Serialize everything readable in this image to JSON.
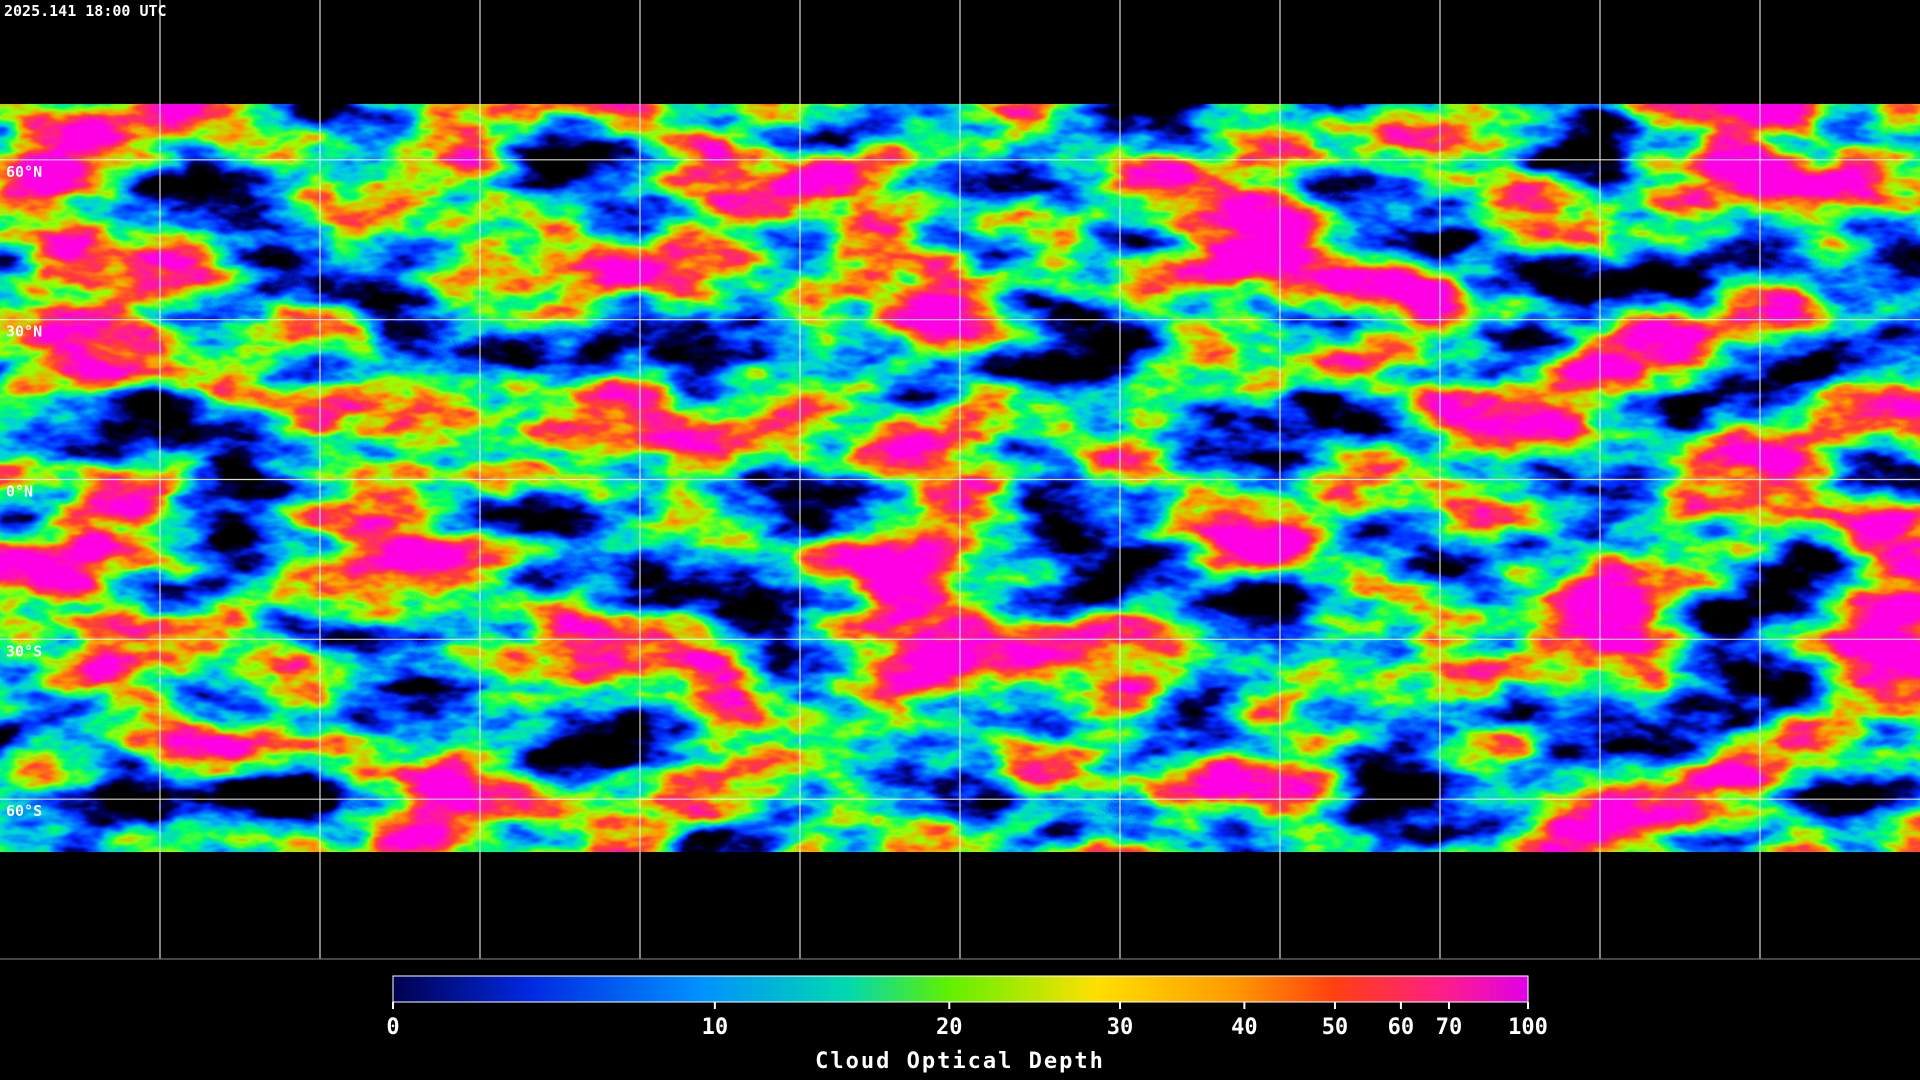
{
  "header": {
    "timestamp": "2025.141 18:00 UTC"
  },
  "map": {
    "latitude_labels": [
      "60°N",
      "30°N",
      "0°N",
      "30°S",
      "60°S"
    ]
  },
  "colorbar": {
    "title": "Cloud Optical Depth",
    "range": [
      0,
      100
    ],
    "ticks": [
      0,
      10,
      20,
      30,
      40,
      50,
      60,
      70,
      100
    ]
  }
}
